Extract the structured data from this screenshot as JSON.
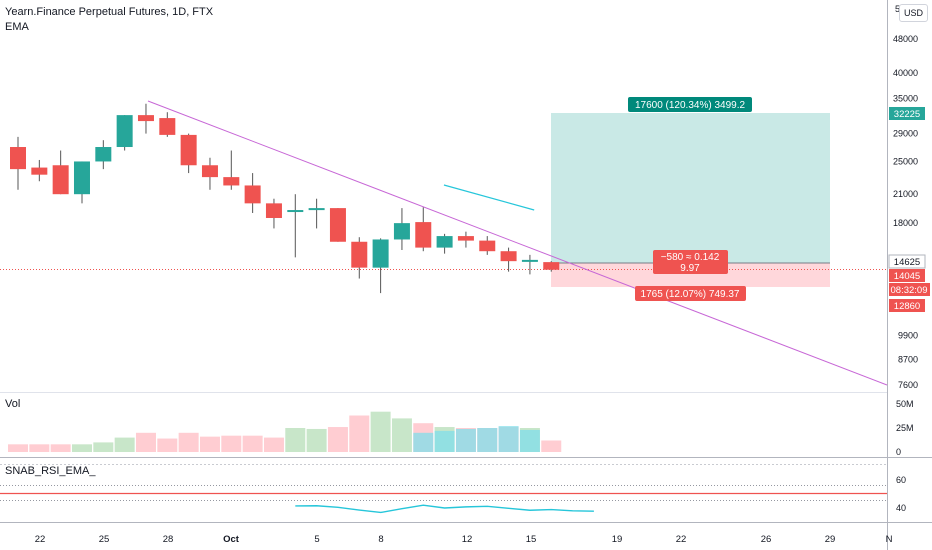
{
  "header": {
    "symbol_line": "Yearn.Finance Perpetual Futures, 1D, FTX",
    "indicator": "EMA",
    "currency_button": "USD",
    "top_tick": "5"
  },
  "price_axis": {
    "ticks": [
      "48000",
      "40000",
      "35000",
      "29000",
      "25000",
      "21000",
      "18000",
      "14625",
      "9900",
      "8700",
      "7600"
    ],
    "tick_values": [
      48000,
      40000,
      35000,
      29000,
      25000,
      21000,
      18000,
      14625,
      9900,
      8700,
      7600
    ]
  },
  "price_labels": {
    "target": "32225",
    "current": "14625",
    "last": "14045",
    "countdown": "08:32:09",
    "stop": "12860"
  },
  "position_tool": {
    "target_label": "17600 (120.34%) 3499.2",
    "center_label_line1": "−580 ≈ 0.142",
    "center_label_line2": "9.97",
    "stop_label": "1765 (12.07%) 749.37",
    "entry": 14625,
    "target": 32225,
    "stop": 12860
  },
  "volume_pane": {
    "label": "Vol",
    "ticks": [
      "50M",
      "25M",
      "0"
    ],
    "tick_values": [
      50,
      25,
      0
    ]
  },
  "rsi_pane": {
    "label": "SNAB_RSI_EMA_",
    "ticks": [
      "60",
      "40"
    ],
    "tick_values": [
      60,
      40
    ],
    "upper_level": 55,
    "red_level": 50,
    "lower_level": 45,
    "line_values": [
      41.5,
      41.6,
      40.5,
      38.5,
      36.8,
      39.5,
      42.0,
      40.0,
      40.8,
      41.2,
      39.8,
      38.4,
      38.9,
      38.0,
      37.7
    ]
  },
  "time_axis": {
    "labels": [
      "22",
      "25",
      "28",
      "Oct",
      "5",
      "8",
      "12",
      "15",
      "19",
      "22",
      "26",
      "29",
      "N"
    ]
  },
  "chart_data": {
    "type": "candlestick",
    "title": "Yearn.Finance Perpetual Futures, 1D, FTX",
    "candles": [
      {
        "o": 27000,
        "h": 28500,
        "l": 21500,
        "c": 24000
      },
      {
        "o": 24200,
        "h": 25200,
        "l": 22500,
        "c": 23300
      },
      {
        "o": 24500,
        "h": 26500,
        "l": 21000,
        "c": 21000
      },
      {
        "o": 21000,
        "h": 25000,
        "l": 20000,
        "c": 25000
      },
      {
        "o": 25000,
        "h": 28000,
        "l": 24000,
        "c": 27000
      },
      {
        "o": 27000,
        "h": 32000,
        "l": 26500,
        "c": 32000
      },
      {
        "o": 32000,
        "h": 34000,
        "l": 29000,
        "c": 31000
      },
      {
        "o": 31500,
        "h": 32500,
        "l": 28500,
        "c": 28800
      },
      {
        "o": 28800,
        "h": 29000,
        "l": 23500,
        "c": 24500
      },
      {
        "o": 24500,
        "h": 25500,
        "l": 21500,
        "c": 23000
      },
      {
        "o": 23000,
        "h": 26500,
        "l": 21500,
        "c": 22000
      },
      {
        "o": 22000,
        "h": 23500,
        "l": 19000,
        "c": 20000
      },
      {
        "o": 20000,
        "h": 20500,
        "l": 17500,
        "c": 18500
      },
      {
        "o": 19200,
        "h": 21000,
        "l": 15000,
        "c": 19300
      },
      {
        "o": 19300,
        "h": 20500,
        "l": 17500,
        "c": 19500
      },
      {
        "o": 19500,
        "h": 19500,
        "l": 16300,
        "c": 16300
      },
      {
        "o": 16300,
        "h": 16700,
        "l": 13400,
        "c": 14200
      },
      {
        "o": 14200,
        "h": 16600,
        "l": 12400,
        "c": 16500
      },
      {
        "o": 16500,
        "h": 19500,
        "l": 15600,
        "c": 18000
      },
      {
        "o": 18100,
        "h": 19600,
        "l": 15500,
        "c": 15800
      },
      {
        "o": 15800,
        "h": 17000,
        "l": 15300,
        "c": 16800
      },
      {
        "o": 16800,
        "h": 17200,
        "l": 15800,
        "c": 16400
      },
      {
        "o": 16400,
        "h": 16800,
        "l": 15200,
        "c": 15500
      },
      {
        "o": 15500,
        "h": 15800,
        "l": 13900,
        "c": 14700
      },
      {
        "o": 14700,
        "h": 15200,
        "l": 13700,
        "c": 14800
      },
      {
        "o": 14625,
        "h": 14700,
        "l": 13900,
        "c": 14045
      }
    ],
    "volume_millions": [
      8,
      8,
      8,
      8,
      10,
      15,
      20,
      14,
      20,
      16,
      17,
      17,
      15,
      25,
      24,
      26,
      38,
      42,
      35,
      30,
      26,
      25,
      25,
      26,
      25,
      12
    ],
    "volume_overlay_millions": [
      0,
      0,
      0,
      0,
      0,
      0,
      0,
      0,
      0,
      0,
      0,
      0,
      0,
      0,
      0,
      0,
      0,
      0,
      0,
      20,
      22,
      24,
      25,
      27,
      23,
      0
    ],
    "trendline": {
      "from_index": 6,
      "from_price": 34500,
      "to_index": 41,
      "to_price": 7600
    },
    "ema": {
      "from_index": 19.5,
      "from_price": 22500,
      "to_index": 24.2,
      "to_price": 19500
    }
  }
}
